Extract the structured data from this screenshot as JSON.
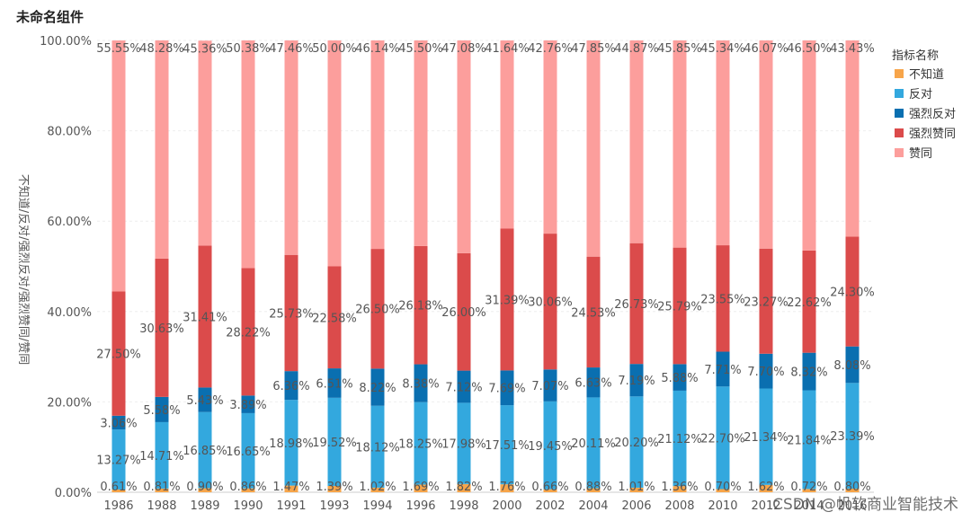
{
  "page": {
    "title": "未命名组件",
    "watermark": "CSDN @帆软商业智能技术"
  },
  "chart_data": {
    "type": "bar",
    "stacked": "percent",
    "title": "未命名组件",
    "xlabel": "",
    "ylabel": "不知道/反对/强烈反对/强烈赞同/赞同",
    "ylim": [
      0,
      100
    ],
    "y_ticks": [
      "0.00%",
      "20.00%",
      "40.00%",
      "60.00%",
      "80.00%",
      "100.00%"
    ],
    "legend_title": "指标名称",
    "legend_position": "top-right",
    "categories": [
      "1986",
      "1988",
      "1989",
      "1990",
      "1991",
      "1993",
      "1994",
      "1996",
      "1998",
      "2000",
      "2002",
      "2004",
      "2006",
      "2008",
      "2010",
      "2012",
      "2014",
      "2016"
    ],
    "series": [
      {
        "name": "不知道",
        "color": "#F7A54A",
        "values": [
          0.61,
          0.81,
          0.9,
          0.86,
          1.47,
          1.39,
          1.02,
          1.69,
          1.82,
          1.76,
          0.66,
          0.88,
          1.01,
          1.36,
          0.7,
          1.62,
          0.72,
          0.8
        ],
        "labels": [
          "0.61%",
          "0.81%",
          "0.90%",
          "0.86%",
          "1.47%",
          "1.39%",
          "1.02%",
          "1.69%",
          "1.82%",
          "1.76%",
          "0.66%",
          "0.88%",
          "1.01%",
          "1.36%",
          "0.70%",
          "1.62%",
          "0.72%",
          "0.80%"
        ]
      },
      {
        "name": "反对",
        "color": "#33A8DE",
        "values": [
          13.27,
          14.71,
          16.85,
          16.65,
          18.98,
          19.52,
          18.12,
          18.25,
          17.98,
          17.51,
          19.45,
          20.11,
          20.2,
          21.12,
          22.7,
          21.34,
          21.84,
          23.39
        ],
        "labels": [
          "13.27%",
          "14.71%",
          "16.85%",
          "16.65%",
          "18.98%",
          "19.52%",
          "18.12%",
          "18.25%",
          "17.98%",
          "17.51%",
          "19.45%",
          "20.11%",
          "20.20%",
          "21.12%",
          "22.70%",
          "21.34%",
          "21.84%",
          "23.39%"
        ]
      },
      {
        "name": "强烈反对",
        "color": "#0A6FB0",
        "values": [
          3.06,
          5.58,
          5.43,
          3.89,
          6.36,
          6.51,
          8.22,
          8.38,
          7.12,
          7.69,
          7.07,
          6.63,
          7.19,
          5.88,
          7.71,
          7.7,
          8.32,
          8.08
        ],
        "labels": [
          "3.06%",
          "5.58%",
          "5.43%",
          "3.89%",
          "6.36%",
          "6.51%",
          "8.22%",
          "8.38%",
          "7.12%",
          "7.69%",
          "7.07%",
          "6.63%",
          "7.19%",
          "5.88%",
          "7.71%",
          "7.70%",
          "8.32%",
          "8.08%"
        ]
      },
      {
        "name": "强烈赞同",
        "color": "#DB4B4B",
        "values": [
          27.5,
          30.63,
          31.41,
          28.22,
          25.73,
          22.58,
          26.5,
          26.18,
          26.0,
          31.39,
          30.06,
          24.53,
          26.73,
          25.79,
          23.55,
          23.27,
          22.62,
          24.3
        ],
        "labels": [
          "27.50%",
          "30.63%",
          "31.41%",
          "28.22%",
          "25.73%",
          "22.58%",
          "26.50%",
          "26.18%",
          "26.00%",
          "31.39%",
          "30.06%",
          "24.53%",
          "26.73%",
          "25.79%",
          "23.55%",
          "23.27%",
          "22.62%",
          "24.30%"
        ]
      },
      {
        "name": "赞同",
        "color": "#FC9E9C",
        "values": [
          55.55,
          48.28,
          45.36,
          50.38,
          47.46,
          50.0,
          46.14,
          45.5,
          47.08,
          41.64,
          42.76,
          47.85,
          44.87,
          45.85,
          45.34,
          46.07,
          46.5,
          43.43
        ],
        "labels": [
          "55.55%",
          "48.28%",
          "45.36%",
          "50.38%",
          "47.46%",
          "50.00%",
          "46.14%",
          "45.50%",
          "47.08%",
          "41.64%",
          "42.76%",
          "47.85%",
          "44.87%",
          "45.85%",
          "45.34%",
          "46.07%",
          "46.50%",
          "43.43%"
        ]
      }
    ]
  }
}
